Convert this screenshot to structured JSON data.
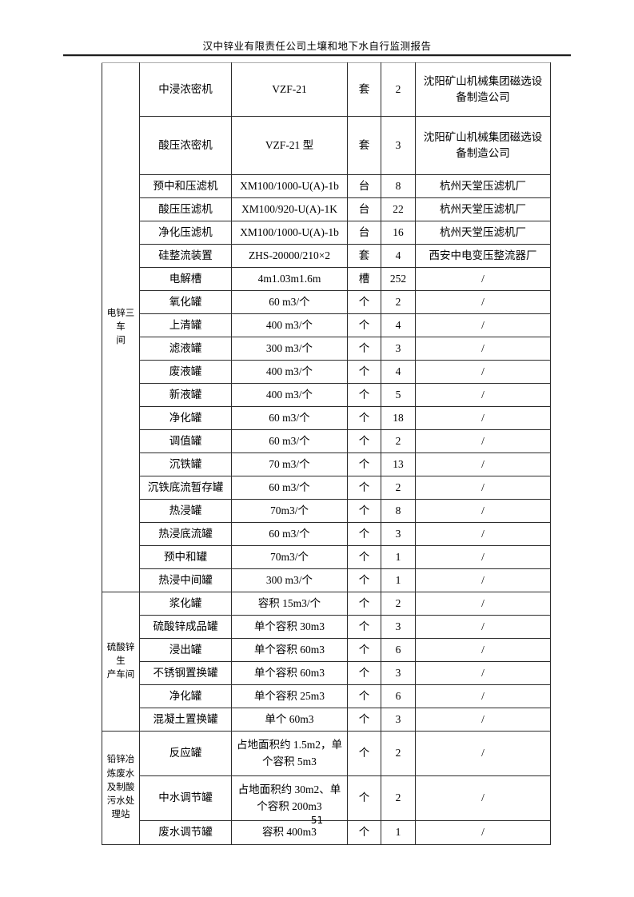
{
  "page": {
    "header_title": "汉中锌业有限责任公司土壤和地下水自行监测报告",
    "page_number": "51"
  },
  "table": {
    "groups": [
      {
        "label": "电锌三车间",
        "label_lines": [
          "电锌三车",
          "间"
        ],
        "rows": [
          {
            "name": "中浸浓密机",
            "spec": "VZF-21",
            "unit": "套",
            "qty": "2",
            "maker": "沈阳矿山机械集团磁选设备制造公司"
          },
          {
            "name": "酸压浓密机",
            "spec": "VZF-21 型",
            "unit": "套",
            "qty": "3",
            "maker": "沈阳矿山机械集团磁选设备制造公司"
          },
          {
            "name": "预中和压滤机",
            "spec": "XM100/1000-U(A)-1b",
            "unit": "台",
            "qty": "8",
            "maker": "杭州天堂压滤机厂"
          },
          {
            "name": "酸压压滤机",
            "spec": "XM100/920-U(A)-1K",
            "unit": "台",
            "qty": "22",
            "maker": "杭州天堂压滤机厂"
          },
          {
            "name": "净化压滤机",
            "spec": "XM100/1000-U(A)-1b",
            "unit": "台",
            "qty": "16",
            "maker": "杭州天堂压滤机厂"
          },
          {
            "name": "硅整流装置",
            "spec": "ZHS-20000/210×2",
            "unit": "套",
            "qty": "4",
            "maker": "西安中电变压整流器厂"
          },
          {
            "name": "电解槽",
            "spec": "4m1.03m1.6m",
            "unit": "槽",
            "qty": "252",
            "maker": "/"
          },
          {
            "name": "氧化罐",
            "spec": "60 m3/个",
            "unit": "个",
            "qty": "2",
            "maker": "/"
          },
          {
            "name": "上清罐",
            "spec": "400 m3/个",
            "unit": "个",
            "qty": "4",
            "maker": "/"
          },
          {
            "name": "滤液罐",
            "spec": "300 m3/个",
            "unit": "个",
            "qty": "3",
            "maker": "/"
          },
          {
            "name": "废液罐",
            "spec": "400 m3/个",
            "unit": "个",
            "qty": "4",
            "maker": "/"
          },
          {
            "name": "新液罐",
            "spec": "400 m3/个",
            "unit": "个",
            "qty": "5",
            "maker": "/"
          },
          {
            "name": "净化罐",
            "spec": "60 m3/个",
            "unit": "个",
            "qty": "18",
            "maker": "/"
          },
          {
            "name": "调值罐",
            "spec": "60 m3/个",
            "unit": "个",
            "qty": "2",
            "maker": "/"
          },
          {
            "name": "沉铁罐",
            "spec": "70 m3/个",
            "unit": "个",
            "qty": "13",
            "maker": "/"
          },
          {
            "name": "沉铁底流暂存罐",
            "spec": "60 m3/个",
            "unit": "个",
            "qty": "2",
            "maker": "/"
          },
          {
            "name": "热浸罐",
            "spec": "70m3/个",
            "unit": "个",
            "qty": "8",
            "maker": "/"
          },
          {
            "name": "热浸底流罐",
            "spec": "60 m3/个",
            "unit": "个",
            "qty": "3",
            "maker": "/"
          },
          {
            "name": "预中和罐",
            "spec": "70m3/个",
            "unit": "个",
            "qty": "1",
            "maker": "/"
          },
          {
            "name": "热浸中间罐",
            "spec": "300 m3/个",
            "unit": "个",
            "qty": "1",
            "maker": "/"
          }
        ]
      },
      {
        "label": "硫酸锌生产车间",
        "label_lines": [
          "硫酸锌生",
          "产车间"
        ],
        "rows": [
          {
            "name": "浆化罐",
            "spec": "容积 15m3/个",
            "unit": "个",
            "qty": "2",
            "maker": "/"
          },
          {
            "name": "硫酸锌成品罐",
            "spec": "单个容积 30m3",
            "unit": "个",
            "qty": "3",
            "maker": "/"
          },
          {
            "name": "浸出罐",
            "spec": "单个容积 60m3",
            "unit": "个",
            "qty": "6",
            "maker": "/",
            "divider_below": true
          },
          {
            "name": "不锈钢置换罐",
            "spec": "单个容积 60m3",
            "unit": "个",
            "qty": "3",
            "maker": "/"
          },
          {
            "name": "净化罐",
            "spec": "单个容积 25m3",
            "unit": "个",
            "qty": "6",
            "maker": "/"
          },
          {
            "name": "混凝土置换罐",
            "spec": "单个 60m3",
            "unit": "个",
            "qty": "3",
            "maker": "/"
          }
        ]
      },
      {
        "label": "铅锌冶炼废水及制酸污水处理站",
        "label_lines": [
          "铅锌冶",
          "炼废水",
          "及制酸",
          "污水处",
          "理站"
        ],
        "rows": [
          {
            "name": "反应罐",
            "spec": "占地面积约 1.5m2，单个容积 5m3",
            "unit": "个",
            "qty": "2",
            "maker": "/"
          },
          {
            "name": "中水调节罐",
            "spec": "占地面积约 30m2、单个容积 200m3",
            "unit": "个",
            "qty": "2",
            "maker": "/"
          },
          {
            "name": "废水调节罐",
            "spec": "容积 400m3",
            "unit": "个",
            "qty": "1",
            "maker": "/"
          }
        ]
      }
    ]
  }
}
